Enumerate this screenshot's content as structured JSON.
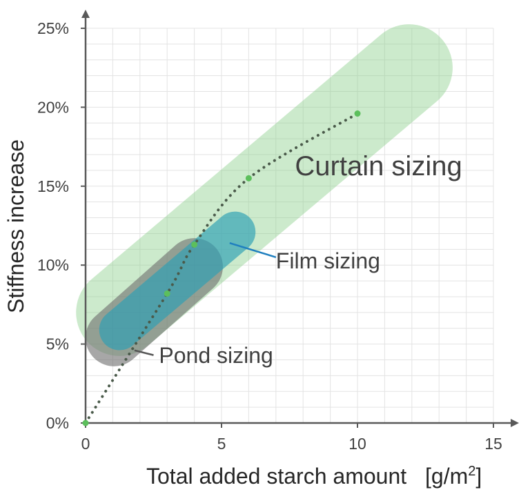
{
  "chart_data": {
    "type": "scatter",
    "title": "",
    "xlabel": "Total added starch amount",
    "xlabel_unit": "[g/m",
    "xlabel_unit_sup": "2",
    "xlabel_unit_close": "]",
    "ylabel": "Stiffness increase",
    "xlim": [
      0,
      15
    ],
    "ylim": [
      0,
      0.25
    ],
    "x_ticks": [
      0,
      5,
      10,
      15
    ],
    "y_ticks": [
      0,
      0.05,
      0.1,
      0.15,
      0.2,
      0.25
    ],
    "x_tick_labels": [
      "0",
      "5",
      "10",
      "15"
    ],
    "y_tick_labels": [
      "0%",
      "5%",
      "10%",
      "15%",
      "20%",
      "25%"
    ],
    "grid": true,
    "series": [
      {
        "points": [
          {
            "x": 0,
            "y": 0.0
          },
          {
            "x": 3,
            "y": 0.082
          },
          {
            "x": 4,
            "y": 0.113
          },
          {
            "x": 6,
            "y": 0.155
          },
          {
            "x": 10,
            "y": 0.196
          }
        ],
        "trendline": "dotted",
        "color": "#5cbf5c"
      }
    ],
    "regions": [
      {
        "name": "Curtain sizing",
        "color": "#8fd18f",
        "opacity": 0.45,
        "x_start": 1.25,
        "y_start": 0.07,
        "x_end": 11.9,
        "y_end": 0.225,
        "half_width": 1.6
      },
      {
        "name": "Pond sizing",
        "color": "#6e6e6e",
        "opacity": 0.6,
        "x_start": 1.05,
        "y_start": 0.054,
        "x_end": 4.0,
        "y_end": 0.099,
        "half_width": 1.05
      },
      {
        "name": "Film sizing",
        "color": "#2b9fb5",
        "opacity": 0.65,
        "x_start": 1.25,
        "y_start": 0.059,
        "x_end": 5.5,
        "y_end": 0.121,
        "half_width": 0.75
      }
    ],
    "annotations": [
      {
        "text": "Curtain sizing",
        "x": 7.7,
        "y": 0.157,
        "size": "large"
      },
      {
        "text": "Film sizing",
        "x": 7.0,
        "y": 0.098,
        "size": "medium",
        "leader_from": [
          7.0,
          0.105
        ],
        "leader_to": [
          5.3,
          0.114
        ],
        "leader_color": "#1f7fbf"
      },
      {
        "text": "Pond sizing",
        "x": 2.7,
        "y": 0.038,
        "size": "medium",
        "leader_from": [
          2.5,
          0.043
        ],
        "leader_to": [
          1.8,
          0.046
        ],
        "leader_color": "#555555"
      }
    ]
  }
}
